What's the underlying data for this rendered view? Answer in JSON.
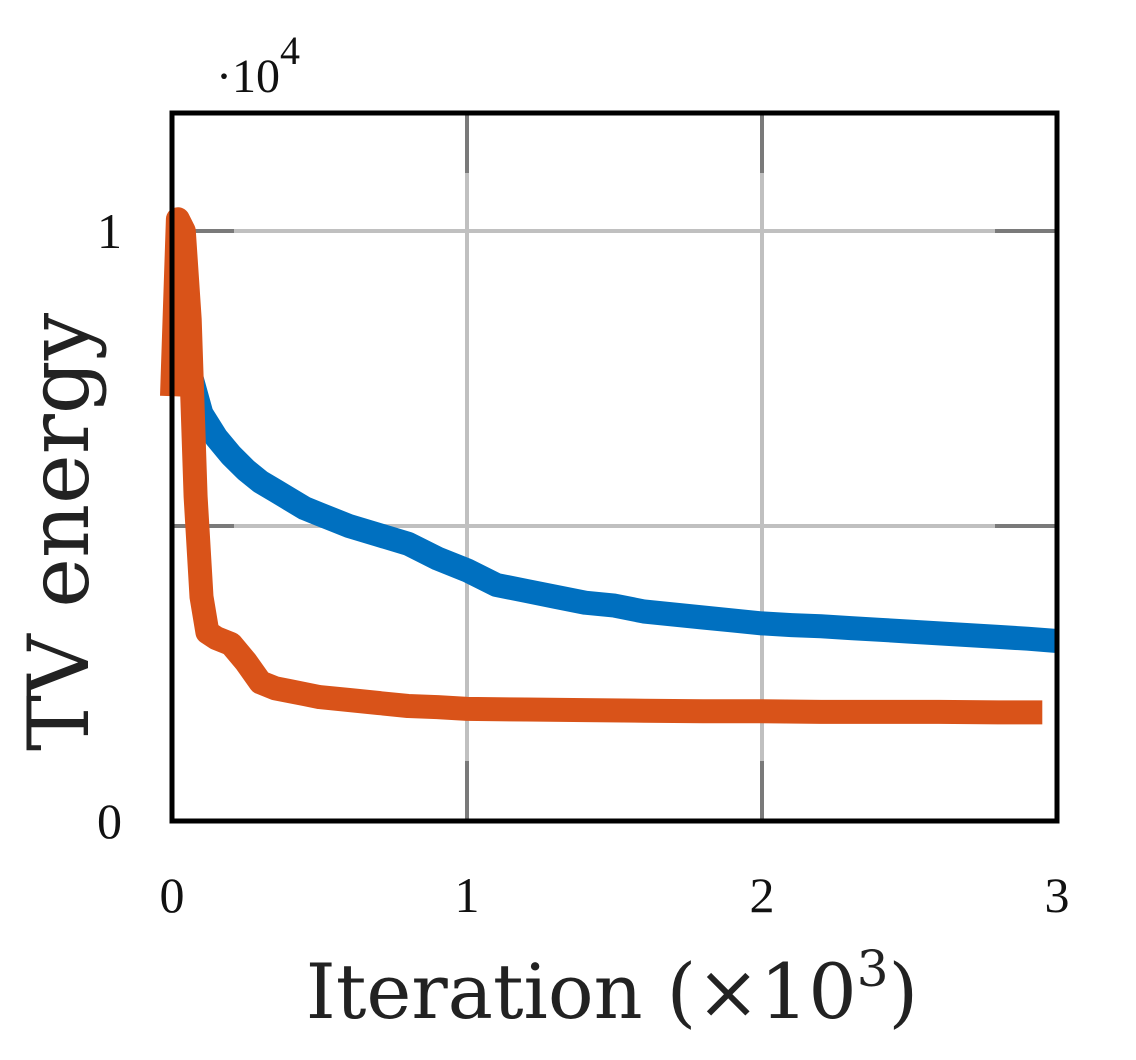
{
  "chart_data": {
    "type": "line",
    "title": "",
    "xlabel": "Iteration (×10",
    "xlabel_exponent": "3",
    "xlabel_close": ")",
    "ylabel": "TV energy",
    "y_scale_prefix": "·10",
    "y_scale_exponent": "4",
    "xlim": [
      0,
      3
    ],
    "ylim": [
      0,
      1.2
    ],
    "xticks": [
      0,
      1,
      2,
      3
    ],
    "xtick_labels": [
      "0",
      "1",
      "2",
      "3"
    ],
    "yticks": [
      0,
      0.5,
      1
    ],
    "ytick_labels": [
      "0",
      "",
      "1"
    ],
    "grid": true,
    "series": [
      {
        "name": "blue",
        "color": "#0070c0",
        "x": [
          0.01,
          0.05,
          0.1,
          0.15,
          0.2,
          0.25,
          0.3,
          0.35,
          0.4,
          0.45,
          0.5,
          0.55,
          0.6,
          0.7,
          0.8,
          0.9,
          1.0,
          1.1,
          1.2,
          1.3,
          1.4,
          1.5,
          1.6,
          1.7,
          1.8,
          1.9,
          2.0,
          2.1,
          2.2,
          2.3,
          2.4,
          2.5,
          2.6,
          2.7,
          2.8,
          2.9,
          3.0
        ],
        "y": [
          0.84,
          0.78,
          0.69,
          0.65,
          0.62,
          0.595,
          0.575,
          0.56,
          0.545,
          0.53,
          0.52,
          0.51,
          0.5,
          0.485,
          0.47,
          0.445,
          0.425,
          0.4,
          0.39,
          0.38,
          0.37,
          0.365,
          0.355,
          0.35,
          0.345,
          0.34,
          0.335,
          0.332,
          0.33,
          0.327,
          0.324,
          0.321,
          0.318,
          0.315,
          0.312,
          0.309,
          0.305
        ]
      },
      {
        "name": "orange",
        "color": "#d95319",
        "x": [
          0.0,
          0.02,
          0.04,
          0.06,
          0.08,
          0.1,
          0.12,
          0.15,
          0.2,
          0.25,
          0.3,
          0.35,
          0.4,
          0.45,
          0.5,
          0.6,
          0.7,
          0.8,
          0.9,
          1.0,
          1.2,
          1.4,
          1.6,
          1.8,
          2.0,
          2.2,
          2.4,
          2.6,
          2.8,
          2.95
        ],
        "y": [
          0.72,
          1.02,
          1.0,
          0.85,
          0.55,
          0.38,
          0.32,
          0.31,
          0.3,
          0.27,
          0.235,
          0.225,
          0.22,
          0.215,
          0.21,
          0.205,
          0.2,
          0.195,
          0.193,
          0.19,
          0.189,
          0.188,
          0.187,
          0.186,
          0.186,
          0.185,
          0.185,
          0.185,
          0.184,
          0.184
        ]
      }
    ]
  }
}
